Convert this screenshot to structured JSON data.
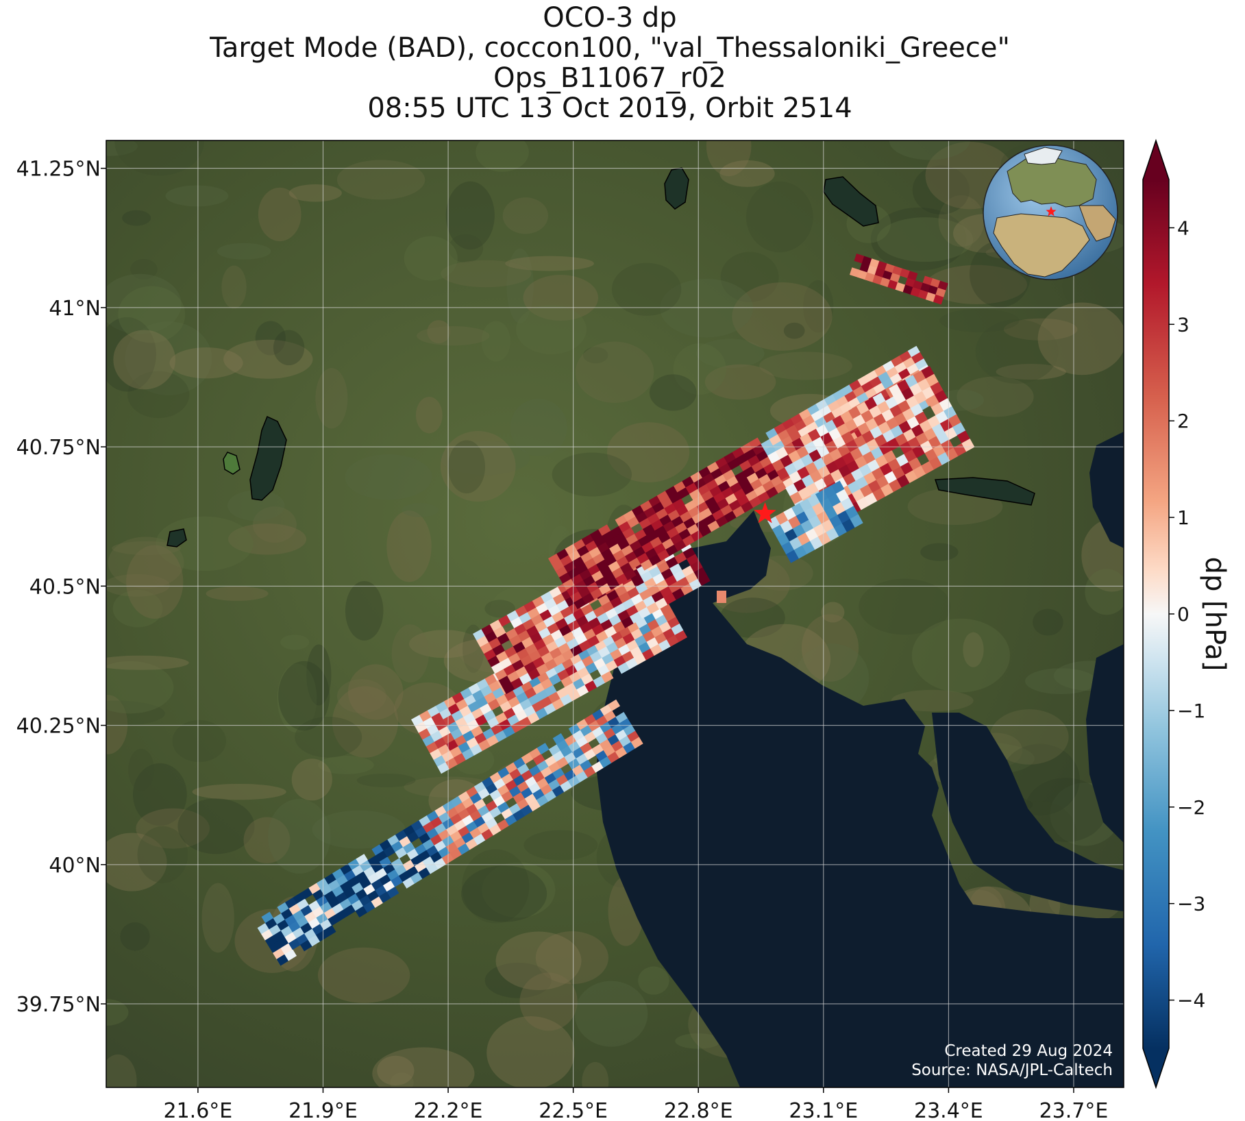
{
  "title": {
    "line1": "OCO-3 dp",
    "line2": "Target Mode (BAD), coccon100, \"val_Thessaloniki_Greece\"",
    "line3": "Ops_B11067_r02",
    "line4": "08:55 UTC 13 Oct 2019, Orbit 2514"
  },
  "map": {
    "lon_range": [
      21.38,
      23.82
    ],
    "lat_range": [
      39.6,
      41.3
    ],
    "lon_ticks": [
      21.6,
      21.9,
      22.2,
      22.5,
      22.8,
      23.1,
      23.4,
      23.7
    ],
    "lat_ticks": [
      39.75,
      40.0,
      40.25,
      40.5,
      40.75,
      41.0,
      41.25
    ],
    "lon_tick_labels": [
      "21.6°E",
      "21.9°E",
      "22.2°E",
      "22.5°E",
      "22.8°E",
      "23.1°E",
      "23.4°E",
      "23.7°E"
    ],
    "lat_tick_labels": [
      "39.75°N",
      "40°N",
      "40.25°N",
      "40.5°N",
      "40.75°N",
      "41°N",
      "41.25°N"
    ],
    "grid": true,
    "target_marker": {
      "lon": 22.96,
      "lat": 40.63,
      "symbol": "red-star"
    },
    "inset_globe": {
      "center_lon": 23.0,
      "center_lat": 40.6,
      "placement": "top-right"
    },
    "credits": {
      "created": "Created 29 Aug 2024",
      "source": "Source: NASA/JPL-Caltech"
    }
  },
  "colorbar": {
    "label": "dp [hPa]",
    "range": [
      -4.5,
      4.5
    ],
    "ticks": [
      4,
      3,
      2,
      1,
      0,
      -1,
      -2,
      -3,
      -4
    ],
    "tick_labels": [
      "4",
      "3",
      "2",
      "1",
      "0",
      "−1",
      "−2",
      "−3",
      "−4"
    ],
    "extend": "both",
    "colormap": "RdBu_r"
  },
  "colors": {
    "land": "#4a5a34",
    "sea": "#0e1d2e",
    "grid": "#d8d8d8",
    "star": "#ff1a1a"
  }
}
